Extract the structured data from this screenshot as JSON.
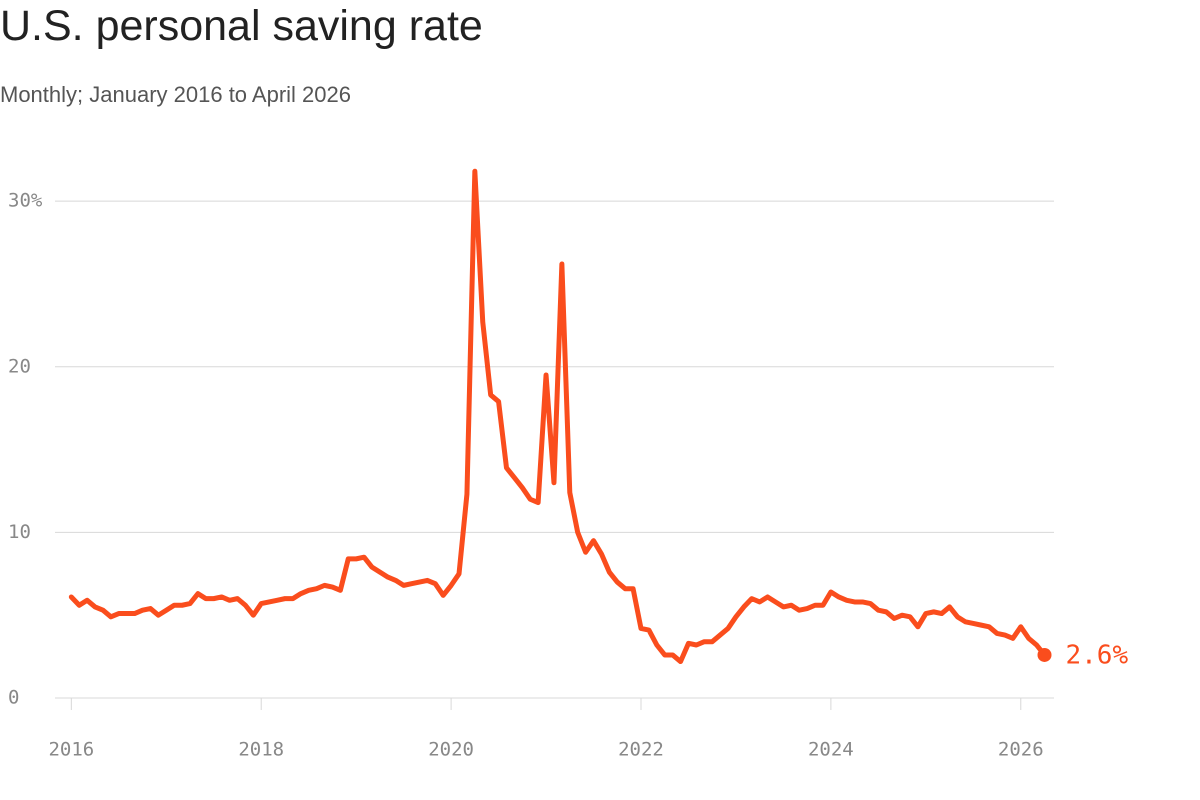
{
  "chart_data": {
    "type": "line",
    "title": "U.S. personal saving rate",
    "subtitle": "Monthly; January 2016 to April 2026",
    "x": [
      "2016-01",
      "2016-02",
      "2016-03",
      "2016-04",
      "2016-05",
      "2016-06",
      "2016-07",
      "2016-08",
      "2016-09",
      "2016-10",
      "2016-11",
      "2016-12",
      "2017-01",
      "2017-02",
      "2017-03",
      "2017-04",
      "2017-05",
      "2017-06",
      "2017-07",
      "2017-08",
      "2017-09",
      "2017-10",
      "2017-11",
      "2017-12",
      "2018-01",
      "2018-02",
      "2018-03",
      "2018-04",
      "2018-05",
      "2018-06",
      "2018-07",
      "2018-08",
      "2018-09",
      "2018-10",
      "2018-11",
      "2018-12",
      "2019-01",
      "2019-02",
      "2019-03",
      "2019-04",
      "2019-05",
      "2019-06",
      "2019-07",
      "2019-08",
      "2019-09",
      "2019-10",
      "2019-11",
      "2019-12",
      "2020-01",
      "2020-02",
      "2020-03",
      "2020-04",
      "2020-05",
      "2020-06",
      "2020-07",
      "2020-08",
      "2020-09",
      "2020-10",
      "2020-11",
      "2020-12",
      "2021-01",
      "2021-02",
      "2021-03",
      "2021-04",
      "2021-05",
      "2021-06",
      "2021-07",
      "2021-08",
      "2021-09",
      "2021-10",
      "2021-11",
      "2021-12",
      "2022-01",
      "2022-02",
      "2022-03",
      "2022-04",
      "2022-05",
      "2022-06",
      "2022-07",
      "2022-08",
      "2022-09",
      "2022-10",
      "2022-11",
      "2022-12",
      "2023-01",
      "2023-02",
      "2023-03",
      "2023-04",
      "2023-05",
      "2023-06",
      "2023-07",
      "2023-08",
      "2023-09",
      "2023-10",
      "2023-11",
      "2023-12",
      "2024-01",
      "2024-02",
      "2024-03",
      "2024-04",
      "2024-05",
      "2024-06",
      "2024-07",
      "2024-08",
      "2024-09",
      "2024-10",
      "2024-11",
      "2024-12",
      "2025-01",
      "2025-02",
      "2025-03",
      "2025-04",
      "2025-05",
      "2025-06",
      "2025-07",
      "2025-08",
      "2025-09",
      "2025-10",
      "2025-11",
      "2025-12",
      "2026-01",
      "2026-02",
      "2026-03",
      "2026-04"
    ],
    "series": [
      {
        "name": "Personal saving rate",
        "color": "#fa4d1d",
        "values": [
          6.1,
          5.6,
          5.9,
          5.5,
          5.3,
          4.9,
          5.1,
          5.1,
          5.1,
          5.3,
          5.4,
          5.0,
          5.3,
          5.6,
          5.6,
          5.7,
          6.3,
          6.0,
          6.0,
          6.1,
          5.9,
          6.0,
          5.6,
          5.0,
          5.7,
          5.8,
          5.9,
          6.0,
          6.0,
          6.3,
          6.5,
          6.6,
          6.8,
          6.7,
          6.5,
          8.4,
          8.4,
          8.5,
          7.9,
          7.6,
          7.3,
          7.1,
          6.8,
          6.9,
          7.0,
          7.1,
          6.9,
          6.2,
          6.8,
          7.5,
          12.3,
          31.8,
          22.7,
          18.3,
          17.9,
          13.9,
          13.3,
          12.7,
          12.0,
          11.8,
          19.5,
          13.0,
          26.2,
          12.4,
          10.0,
          8.8,
          9.5,
          8.7,
          7.6,
          7.0,
          6.6,
          6.6,
          4.2,
          4.1,
          3.2,
          2.6,
          2.6,
          2.2,
          3.3,
          3.2,
          3.4,
          3.4,
          3.8,
          4.2,
          4.9,
          5.5,
          6.0,
          5.8,
          6.1,
          5.8,
          5.5,
          5.6,
          5.3,
          5.4,
          5.6,
          5.6,
          6.4,
          6.1,
          5.9,
          5.8,
          5.8,
          5.7,
          5.3,
          5.2,
          4.8,
          5.0,
          4.9,
          4.3,
          5.1,
          5.2,
          5.1,
          5.5,
          4.9,
          4.6,
          4.5,
          4.4,
          4.3,
          3.9,
          3.8,
          3.6,
          4.3,
          3.6,
          3.2,
          2.6
        ],
        "value_labels": [
          null,
          null,
          null,
          null,
          null,
          null,
          null,
          null,
          null,
          null,
          null,
          null,
          null,
          null,
          null,
          null,
          null,
          null,
          null,
          null,
          null,
          null,
          null,
          null,
          null,
          null,
          null,
          null,
          null,
          null,
          null,
          null,
          null,
          null,
          null,
          null,
          null,
          null,
          null,
          null,
          null,
          null,
          null,
          null,
          null,
          null,
          null,
          null,
          null,
          null,
          null,
          null,
          null,
          null,
          null,
          null,
          null,
          null,
          null,
          null,
          null,
          null,
          null,
          null,
          null,
          null,
          null,
          null,
          null,
          null,
          null,
          null,
          null,
          null,
          null,
          null,
          null,
          null,
          null,
          null,
          null,
          null,
          null,
          null,
          null,
          null,
          null,
          null,
          null,
          null,
          null,
          null,
          null,
          null,
          null,
          null,
          null,
          null,
          null,
          null,
          null,
          null,
          null,
          null,
          null,
          null,
          null,
          null,
          null,
          null,
          null,
          null,
          null,
          null,
          null,
          null,
          null,
          null,
          null,
          null,
          null,
          null,
          null,
          "2.6%"
        ]
      }
    ],
    "xlim": [
      2015.67,
      2026.35
    ],
    "xticks": [
      2016,
      2018,
      2020,
      2022,
      2024,
      2026
    ],
    "ylim": [
      0,
      32
    ],
    "yticks": [
      0,
      10,
      20,
      {
        "value": 30,
        "label": "30%"
      }
    ],
    "grid": true
  }
}
